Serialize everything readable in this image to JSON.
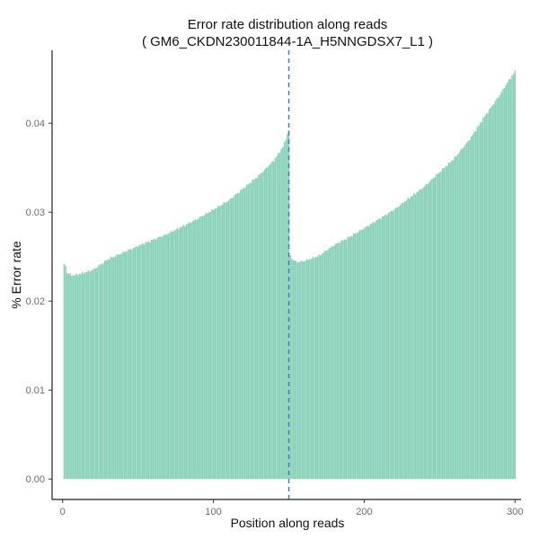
{
  "chart_data": {
    "type": "bar",
    "title": "Error rate distribution along reads",
    "subtitle": "( GM6_CKDN230011844-1A_H5NNGDSX7_L1 )",
    "xlabel": "Position along reads",
    "ylabel": "% Error rate",
    "xlim": [
      -7,
      304
    ],
    "ylim": [
      -0.0023,
      0.0482
    ],
    "x_ticks": [
      0,
      100,
      200,
      300
    ],
    "y_ticks": [
      0.0,
      0.01,
      0.02,
      0.03,
      0.04
    ],
    "y_tick_labels": [
      "0.00",
      "0.01",
      "0.02",
      "0.03",
      "0.04"
    ],
    "x_tick_labels": [
      "0",
      "100",
      "200",
      "300"
    ],
    "grid": false,
    "bar_color": "#88d1b9",
    "vline": {
      "x": 150,
      "color": "#3a7fc1",
      "style": "dashed"
    },
    "series": [
      {
        "segments": [
          {
            "x_start": 1,
            "x_end": 150,
            "points": [
              [
                1,
                0.0241
              ],
              [
                2,
                0.024
              ],
              [
                3,
                0.0232
              ],
              [
                6,
                0.0229
              ],
              [
                10,
                0.023
              ],
              [
                20,
                0.0235
              ],
              [
                30,
                0.0247
              ],
              [
                50,
                0.0262
              ],
              [
                70,
                0.0276
              ],
              [
                90,
                0.0293
              ],
              [
                110,
                0.0313
              ],
              [
                130,
                0.0341
              ],
              [
                140,
                0.0358
              ],
              [
                146,
                0.0373
              ],
              [
                150,
                0.0392
              ]
            ]
          },
          {
            "x_start": 151,
            "x_end": 300,
            "points": [
              [
                151,
                0.0251
              ],
              [
                153,
                0.0246
              ],
              [
                156,
                0.0244
              ],
              [
                160,
                0.0245
              ],
              [
                170,
                0.0251
              ],
              [
                180,
                0.0263
              ],
              [
                190,
                0.0272
              ],
              [
                200,
                0.0282
              ],
              [
                220,
                0.0303
              ],
              [
                240,
                0.0329
              ],
              [
                260,
                0.0361
              ],
              [
                270,
                0.0382
              ],
              [
                280,
                0.0408
              ],
              [
                290,
                0.0432
              ],
              [
                295,
                0.0446
              ],
              [
                300,
                0.0458
              ]
            ]
          }
        ]
      }
    ]
  }
}
